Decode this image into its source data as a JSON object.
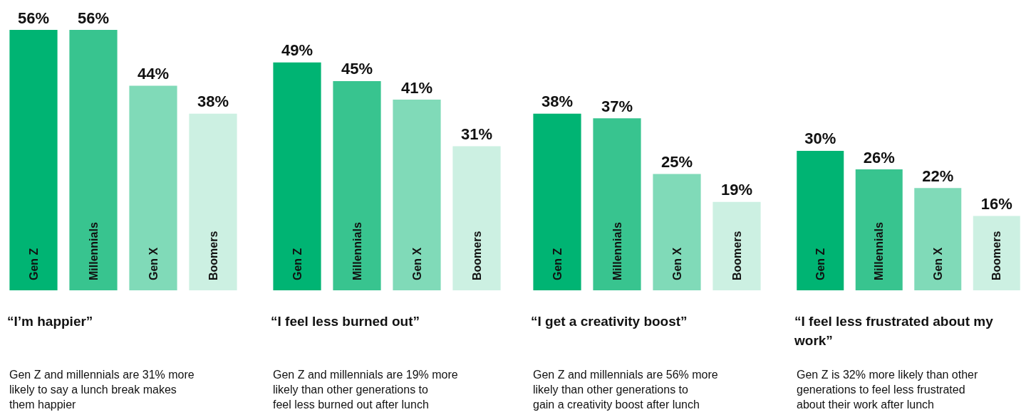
{
  "chart_data": [
    {
      "type": "bar",
      "title": "“I’m happier”",
      "categories": [
        "Gen Z",
        "Millennials",
        "Gen X",
        "Boomers"
      ],
      "values": [
        56,
        56,
        44,
        38
      ],
      "value_labels": [
        "56%",
        "56%",
        "44%",
        "38%"
      ],
      "colors": [
        "#00b473",
        "#38c48f",
        "#80dab8",
        "#ccf0e2"
      ],
      "annotations": [
        "Gen Z and millennials are 31% more likely to say a lunch break makes them happier"
      ]
    },
    {
      "type": "bar",
      "title": "“I feel less burned out”",
      "categories": [
        "Gen Z",
        "Millennials",
        "Gen X",
        "Boomers"
      ],
      "values": [
        49,
        45,
        41,
        31
      ],
      "value_labels": [
        "49%",
        "45%",
        "41%",
        "31%"
      ],
      "colors": [
        "#00b473",
        "#38c48f",
        "#80dab8",
        "#ccf0e2"
      ],
      "annotations": [
        "Gen Z and millennials are 19% more likely than other generations to feel less burned out after lunch"
      ]
    },
    {
      "type": "bar",
      "title": "“I get a creativity boost”",
      "categories": [
        "Gen Z",
        "Millennials",
        "Gen X",
        "Boomers"
      ],
      "values": [
        38,
        37,
        25,
        19
      ],
      "value_labels": [
        "38%",
        "37%",
        "25%",
        "19%"
      ],
      "colors": [
        "#00b473",
        "#38c48f",
        "#80dab8",
        "#ccf0e2"
      ],
      "annotations": [
        "Gen Z and millennials are 56% more likely than other generations to gain a creativity boost after lunch"
      ]
    },
    {
      "type": "bar",
      "title": "“I feel less frustrated about my work”",
      "categories": [
        "Gen Z",
        "Millennials",
        "Gen X",
        "Boomers"
      ],
      "values": [
        30,
        26,
        22,
        16
      ],
      "value_labels": [
        "30%",
        "26%",
        "22%",
        "16%"
      ],
      "colors": [
        "#00b473",
        "#38c48f",
        "#80dab8",
        "#ccf0e2"
      ],
      "annotations": [
        "Gen Z is 32% more likely than other generations to feel less frustrated about their work after lunch"
      ]
    }
  ]
}
